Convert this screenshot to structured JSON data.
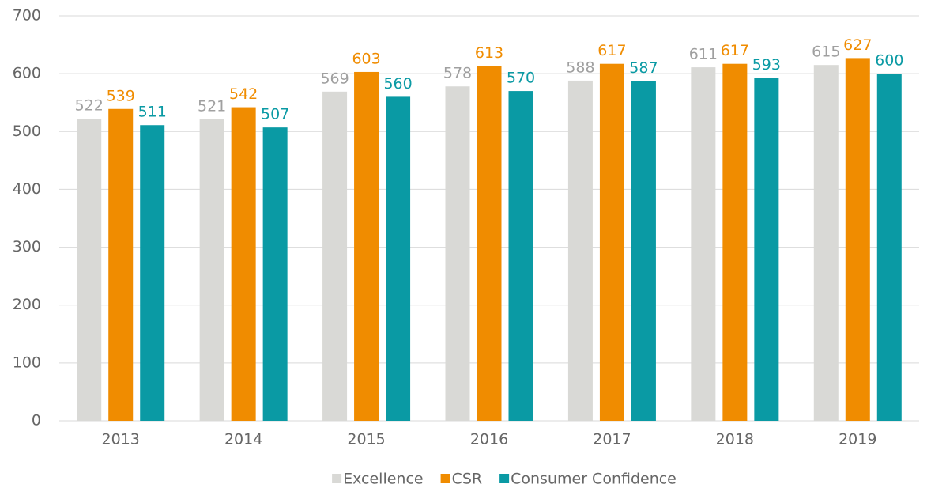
{
  "chart_data": {
    "type": "bar",
    "categories": [
      "2013",
      "2014",
      "2015",
      "2016",
      "2017",
      "2018",
      "2019"
    ],
    "series": [
      {
        "name": "Excellence",
        "color": "#d9d9d6",
        "label_color": "#a0a0a0",
        "values": [
          522,
          521,
          569,
          578,
          588,
          611,
          615
        ]
      },
      {
        "name": "CSR",
        "color": "#f08c00",
        "label_color": "#f08c00",
        "values": [
          539,
          542,
          603,
          613,
          617,
          617,
          627
        ]
      },
      {
        "name": "Consumer Confidence",
        "color": "#0a9aa4",
        "label_color": "#0a9aa4",
        "values": [
          511,
          507,
          560,
          570,
          587,
          593,
          600
        ]
      }
    ],
    "ylim": [
      0,
      700
    ],
    "yticks": [
      0,
      100,
      200,
      300,
      400,
      500,
      600,
      700
    ],
    "grid": true,
    "legend": "bottom"
  }
}
